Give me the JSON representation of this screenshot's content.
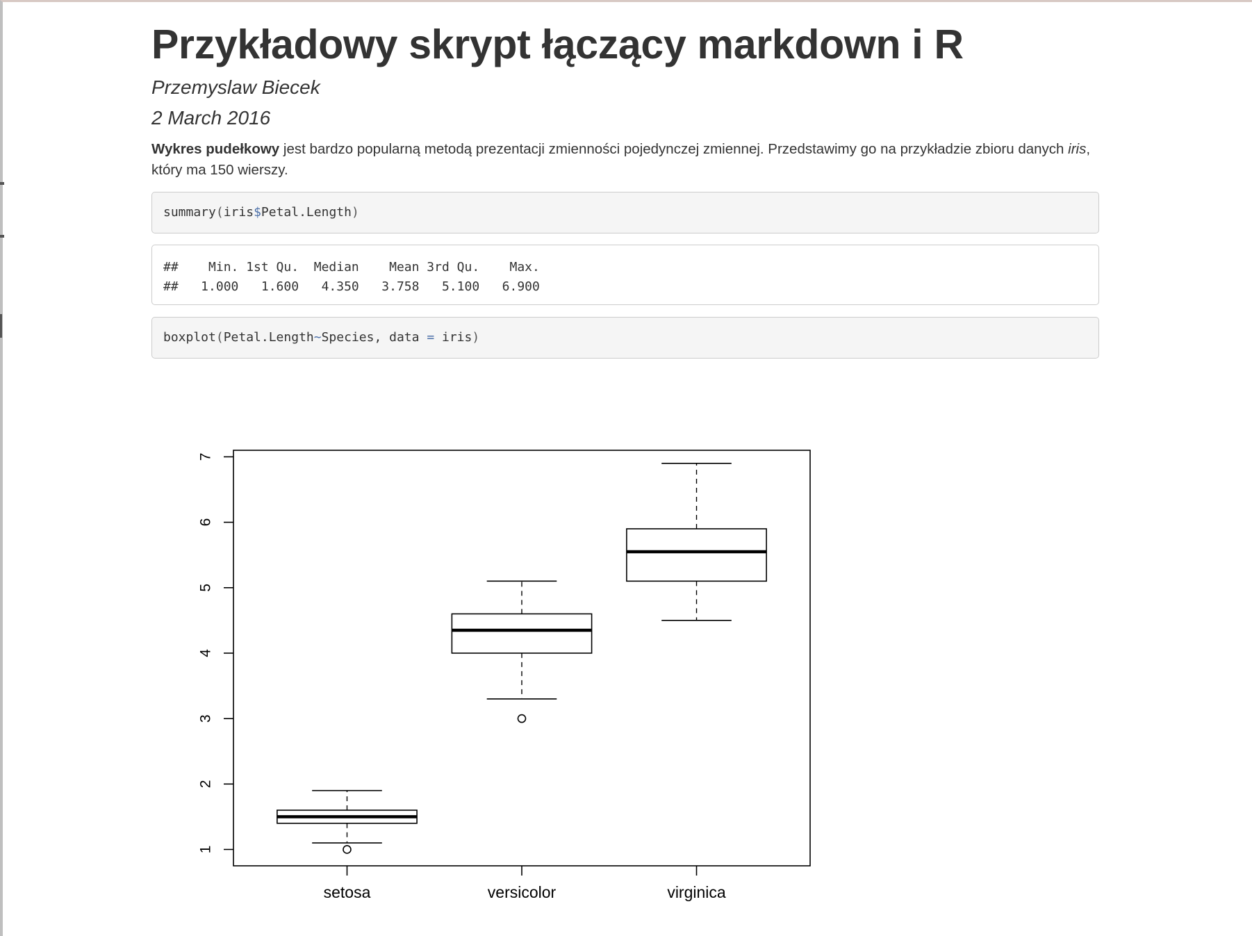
{
  "document": {
    "title": "Przykładowy skrypt łączący markdown i R",
    "author": "Przemyslaw Biecek",
    "date": "2 March 2016",
    "paragraph": {
      "bold_lead": "Wykres pudełkowy",
      "text_1": " jest bardzo popularną metodą prezentacji zmienności pojedynczej zmiennej. Przedstawimy go na przykładzie zbioru danych ",
      "italic_word": "iris",
      "text_2": ", który ma 150 wierszy."
    },
    "code_chunk_1": {
      "fn": "summary",
      "open": "(",
      "obj": "iris",
      "dollar": "$",
      "field": "Petal.Length",
      "close": ")"
    },
    "output_chunk_1": {
      "line_1": "##    Min. 1st Qu.  Median    Mean 3rd Qu.    Max.",
      "line_2": "##   1.000   1.600   4.350   3.758   5.100   6.900"
    },
    "code_chunk_2": {
      "fn": "boxplot",
      "open": "(",
      "formula_lhs": "Petal.Length",
      "tilde": "~",
      "formula_rhs": "Species, data ",
      "eq": "=",
      "arg": " iris",
      "close": ")"
    }
  },
  "chart_data": {
    "type": "boxplot",
    "title": "",
    "xlabel": "",
    "ylabel": "",
    "ylim": [
      0.75,
      7.1
    ],
    "yticks": [
      1,
      2,
      3,
      4,
      5,
      6,
      7
    ],
    "categories": [
      "setosa",
      "versicolor",
      "virginica"
    ],
    "boxes": [
      {
        "whisker_low": 1.1,
        "q1": 1.4,
        "median": 1.5,
        "q3": 1.6,
        "whisker_high": 1.9,
        "outliers": [
          1.0
        ]
      },
      {
        "whisker_low": 3.3,
        "q1": 4.0,
        "median": 4.35,
        "q3": 4.6,
        "whisker_high": 5.1,
        "outliers": [
          3.0
        ]
      },
      {
        "whisker_low": 4.5,
        "q1": 5.1,
        "median": 5.55,
        "q3": 5.9,
        "whisker_high": 6.9,
        "outliers": []
      }
    ],
    "grid": false,
    "legend": "none"
  }
}
